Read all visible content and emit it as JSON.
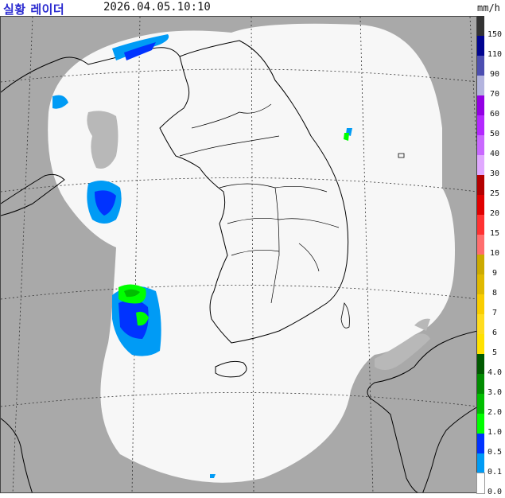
{
  "header": {
    "title": "실황 레이더",
    "timestamp": "2026.04.05.10:10",
    "unit": "mm/h"
  },
  "legend": {
    "levels": [
      {
        "label": "150",
        "color": "#333333"
      },
      {
        "label": "110",
        "color": "#000390"
      },
      {
        "label": "90",
        "color": "#4c4eb1"
      },
      {
        "label": "70",
        "color": "#b3b4de"
      },
      {
        "label": "60",
        "color": "#9300e4"
      },
      {
        "label": "50",
        "color": "#b329ff"
      },
      {
        "label": "40",
        "color": "#c969ff"
      },
      {
        "label": "30",
        "color": "#e0a9ff"
      },
      {
        "label": "25",
        "color": "#b40000"
      },
      {
        "label": "20",
        "color": "#e00000"
      },
      {
        "label": "15",
        "color": "#ff3232"
      },
      {
        "label": "10",
        "color": "#ff6e6e"
      },
      {
        "label": "9",
        "color": "#ccaa00"
      },
      {
        "label": "8",
        "color": "#e0b900"
      },
      {
        "label": "7",
        "color": "#f9cd00"
      },
      {
        "label": "6",
        "color": "#ffdc1f"
      },
      {
        "label": "5",
        "color": "#ffe100"
      },
      {
        "label": "4.0",
        "color": "#005a00"
      },
      {
        "label": "3.0",
        "color": "#008c00"
      },
      {
        "label": "2.0",
        "color": "#00be00"
      },
      {
        "label": "1.0",
        "color": "#00ff00"
      },
      {
        "label": "0.5",
        "color": "#0033ff"
      },
      {
        "label": "0.1",
        "color": "#009bf5"
      },
      {
        "label": "0.0",
        "color": "#ffffff"
      }
    ]
  },
  "map": {
    "outside_color": "#a9a9a9",
    "coverage_color": "#f7f7f7",
    "coastline_color": "#000000",
    "graticule_color": "#333333"
  }
}
